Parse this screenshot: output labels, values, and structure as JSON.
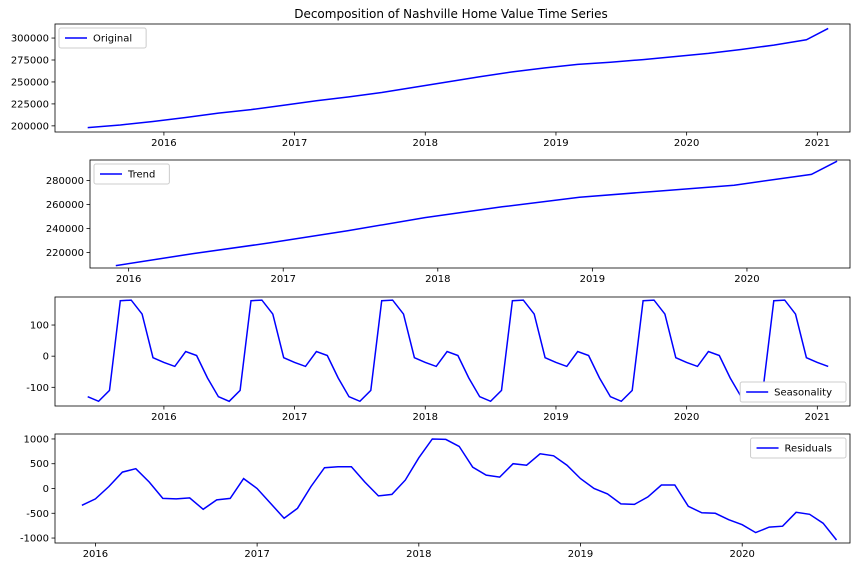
{
  "colors": {
    "line": "#0000ff",
    "axes": "#000000",
    "background": "#ffffff",
    "legend_border": "#cccccc"
  },
  "chart_data": [
    {
      "type": "line",
      "title": "Decomposition of Nashville Home Value Time Series",
      "legend": "top-left",
      "grid": false,
      "xlim": [
        "2015-03-01",
        "2021-04-01"
      ],
      "ylim": [
        193000,
        316000
      ],
      "x_ticks": [
        "2016",
        "2017",
        "2018",
        "2019",
        "2020",
        "2021"
      ],
      "y_ticks": [
        "200000",
        "225000",
        "250000",
        "275000",
        "300000"
      ],
      "series": [
        {
          "name": "Original",
          "points": [
            [
              "2015-06-01",
              198000
            ],
            [
              "2015-09-01",
              201000
            ],
            [
              "2015-12-01",
              205000
            ],
            [
              "2016-03-01",
              209500
            ],
            [
              "2016-06-01",
              214500
            ],
            [
              "2016-09-01",
              218500
            ],
            [
              "2016-12-01",
              223500
            ],
            [
              "2017-03-01",
              228500
            ],
            [
              "2017-06-01",
              233000
            ],
            [
              "2017-09-01",
              238000
            ],
            [
              "2017-12-01",
              244000
            ],
            [
              "2018-03-01",
              250000
            ],
            [
              "2018-06-01",
              256000
            ],
            [
              "2018-09-01",
              261500
            ],
            [
              "2018-12-01",
              266000
            ],
            [
              "2019-03-01",
              270000
            ],
            [
              "2019-06-01",
              272500
            ],
            [
              "2019-09-01",
              275500
            ],
            [
              "2019-12-01",
              279000
            ],
            [
              "2020-03-01",
              282500
            ],
            [
              "2020-06-01",
              287000
            ],
            [
              "2020-09-01",
              292000
            ],
            [
              "2020-12-01",
              298000
            ],
            [
              "2021-02-01",
              311000
            ]
          ]
        }
      ]
    },
    {
      "type": "line",
      "title": "",
      "legend": "top-left",
      "grid": false,
      "xlim": [
        "2015-10-01",
        "2020-09-01"
      ],
      "ylim": [
        207000,
        297000
      ],
      "x_ticks": [
        "2016",
        "2017",
        "2018",
        "2019",
        "2020"
      ],
      "y_ticks": [
        "220000",
        "240000",
        "260000",
        "280000"
      ],
      "series": [
        {
          "name": "Trend",
          "points": [
            [
              "2015-12-01",
              209000
            ],
            [
              "2016-06-01",
              219000
            ],
            [
              "2016-12-01",
              228000
            ],
            [
              "2017-06-01",
              238000
            ],
            [
              "2017-12-01",
              249000
            ],
            [
              "2018-06-01",
              258000
            ],
            [
              "2018-12-01",
              266000
            ],
            [
              "2019-06-01",
              271000
            ],
            [
              "2019-12-01",
              276000
            ],
            [
              "2020-06-01",
              285000
            ],
            [
              "2020-08-01",
              296000
            ]
          ]
        }
      ]
    },
    {
      "type": "line",
      "title": "",
      "legend": "bottom-right",
      "grid": false,
      "xlim": [
        "2015-03-01",
        "2021-04-01"
      ],
      "ylim": [
        -160,
        190
      ],
      "x_ticks": [
        "2016",
        "2017",
        "2018",
        "2019",
        "2020",
        "2021"
      ],
      "y_ticks": [
        "-100",
        "0",
        "100"
      ],
      "series": [
        {
          "name": "Seasonality",
          "pattern_start_year": 2015,
          "pattern_start_month": 6,
          "monthly_pattern": [
            -130,
            -145,
            -110,
            178,
            180,
            135,
            -5,
            -20,
            -33,
            15,
            2,
            -70
          ],
          "period_months": 12,
          "end": "2021-02-01"
        }
      ]
    },
    {
      "type": "line",
      "title": "",
      "legend": "top-right",
      "grid": false,
      "xlim": [
        "2015-10-01",
        "2020-09-01"
      ],
      "ylim": [
        -1100,
        1100
      ],
      "x_ticks": [
        "2016",
        "2017",
        "2018",
        "2019",
        "2020"
      ],
      "y_ticks": [
        "-1000",
        "-500",
        "0",
        "500",
        "1000"
      ],
      "series": [
        {
          "name": "Residuals",
          "start": "2015-12-01",
          "values": [
            -340,
            -210,
            40,
            330,
            400,
            130,
            -200,
            -210,
            -190,
            -420,
            -230,
            -200,
            200,
            0,
            -300,
            -600,
            -400,
            40,
            420,
            440,
            440,
            130,
            -150,
            -120,
            170,
            620,
            1000,
            990,
            850,
            430,
            270,
            230,
            500,
            470,
            700,
            660,
            470,
            200,
            0,
            -110,
            -310,
            -320,
            -170,
            70,
            70,
            -360,
            -490,
            -500,
            -630,
            -730,
            -890,
            -780,
            -760,
            -480,
            -520,
            -700,
            -1040
          ]
        }
      ]
    }
  ]
}
